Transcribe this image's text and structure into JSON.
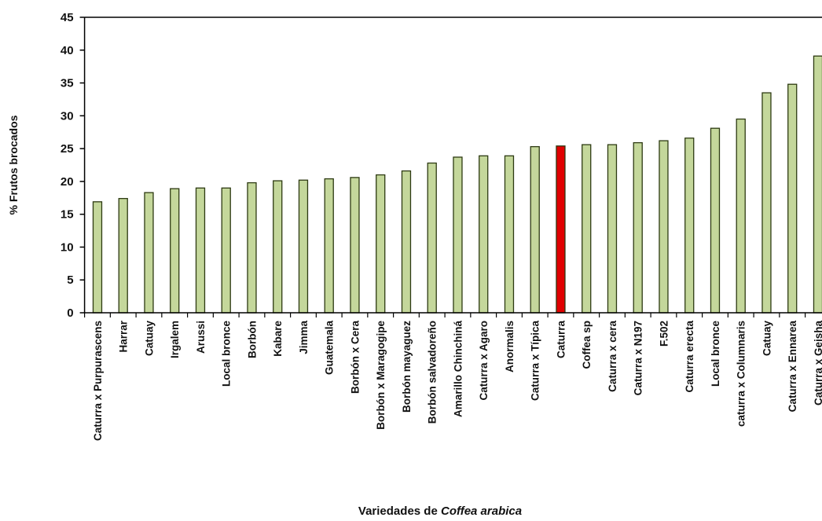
{
  "chart_data": {
    "type": "bar",
    "ylabel": "% Frutos brocados",
    "xlabel": "Variedades de",
    "xlabel_italic": "Coffea arabica",
    "categories": [
      "Caturra x Purpurascens",
      "Harrar",
      "Catuay",
      "Irgalem",
      "Arussi",
      "Local bronce",
      "Borbón",
      "Kabare",
      "Jimma",
      "Guatemala",
      "Borbón x Cera",
      "Borbón x Maragogipe",
      "Borbón mayaguez",
      "Borbón salvadoreño",
      "Amarillo Chinchiná",
      "Caturra x Agaro",
      "Anormalis",
      "Caturra x Típica",
      "Caturra",
      "Coffea sp",
      "Caturra x cera",
      "Caturra x N197",
      "F.502",
      "Caturra erecta",
      "Local bronce",
      "caturra x Columnaris",
      "Catuay",
      "Caturra x Ennarea",
      "Caturra x Geisha"
    ],
    "values": [
      16.9,
      17.4,
      18.3,
      18.9,
      19.0,
      19.0,
      19.8,
      20.1,
      20.2,
      20.4,
      20.6,
      21.0,
      21.6,
      22.8,
      23.7,
      23.9,
      23.9,
      25.3,
      25.4,
      25.6,
      25.6,
      25.9,
      26.2,
      26.6,
      28.1,
      29.5,
      33.5,
      34.8,
      39.1
    ],
    "colors": [
      "#c4d79b",
      "#c4d79b",
      "#c4d79b",
      "#c4d79b",
      "#c4d79b",
      "#c4d79b",
      "#c4d79b",
      "#c4d79b",
      "#c4d79b",
      "#c4d79b",
      "#c4d79b",
      "#c4d79b",
      "#c4d79b",
      "#c4d79b",
      "#c4d79b",
      "#c4d79b",
      "#c4d79b",
      "#c4d79b",
      "#e00000",
      "#c4d79b",
      "#c4d79b",
      "#c4d79b",
      "#c4d79b",
      "#c4d79b",
      "#c4d79b",
      "#c4d79b",
      "#c4d79b",
      "#c4d79b",
      "#c4d79b"
    ],
    "ylim": [
      0,
      45
    ],
    "yticks": [
      0,
      5,
      10,
      15,
      20,
      25,
      30,
      35,
      40,
      45
    ],
    "grid": false
  }
}
